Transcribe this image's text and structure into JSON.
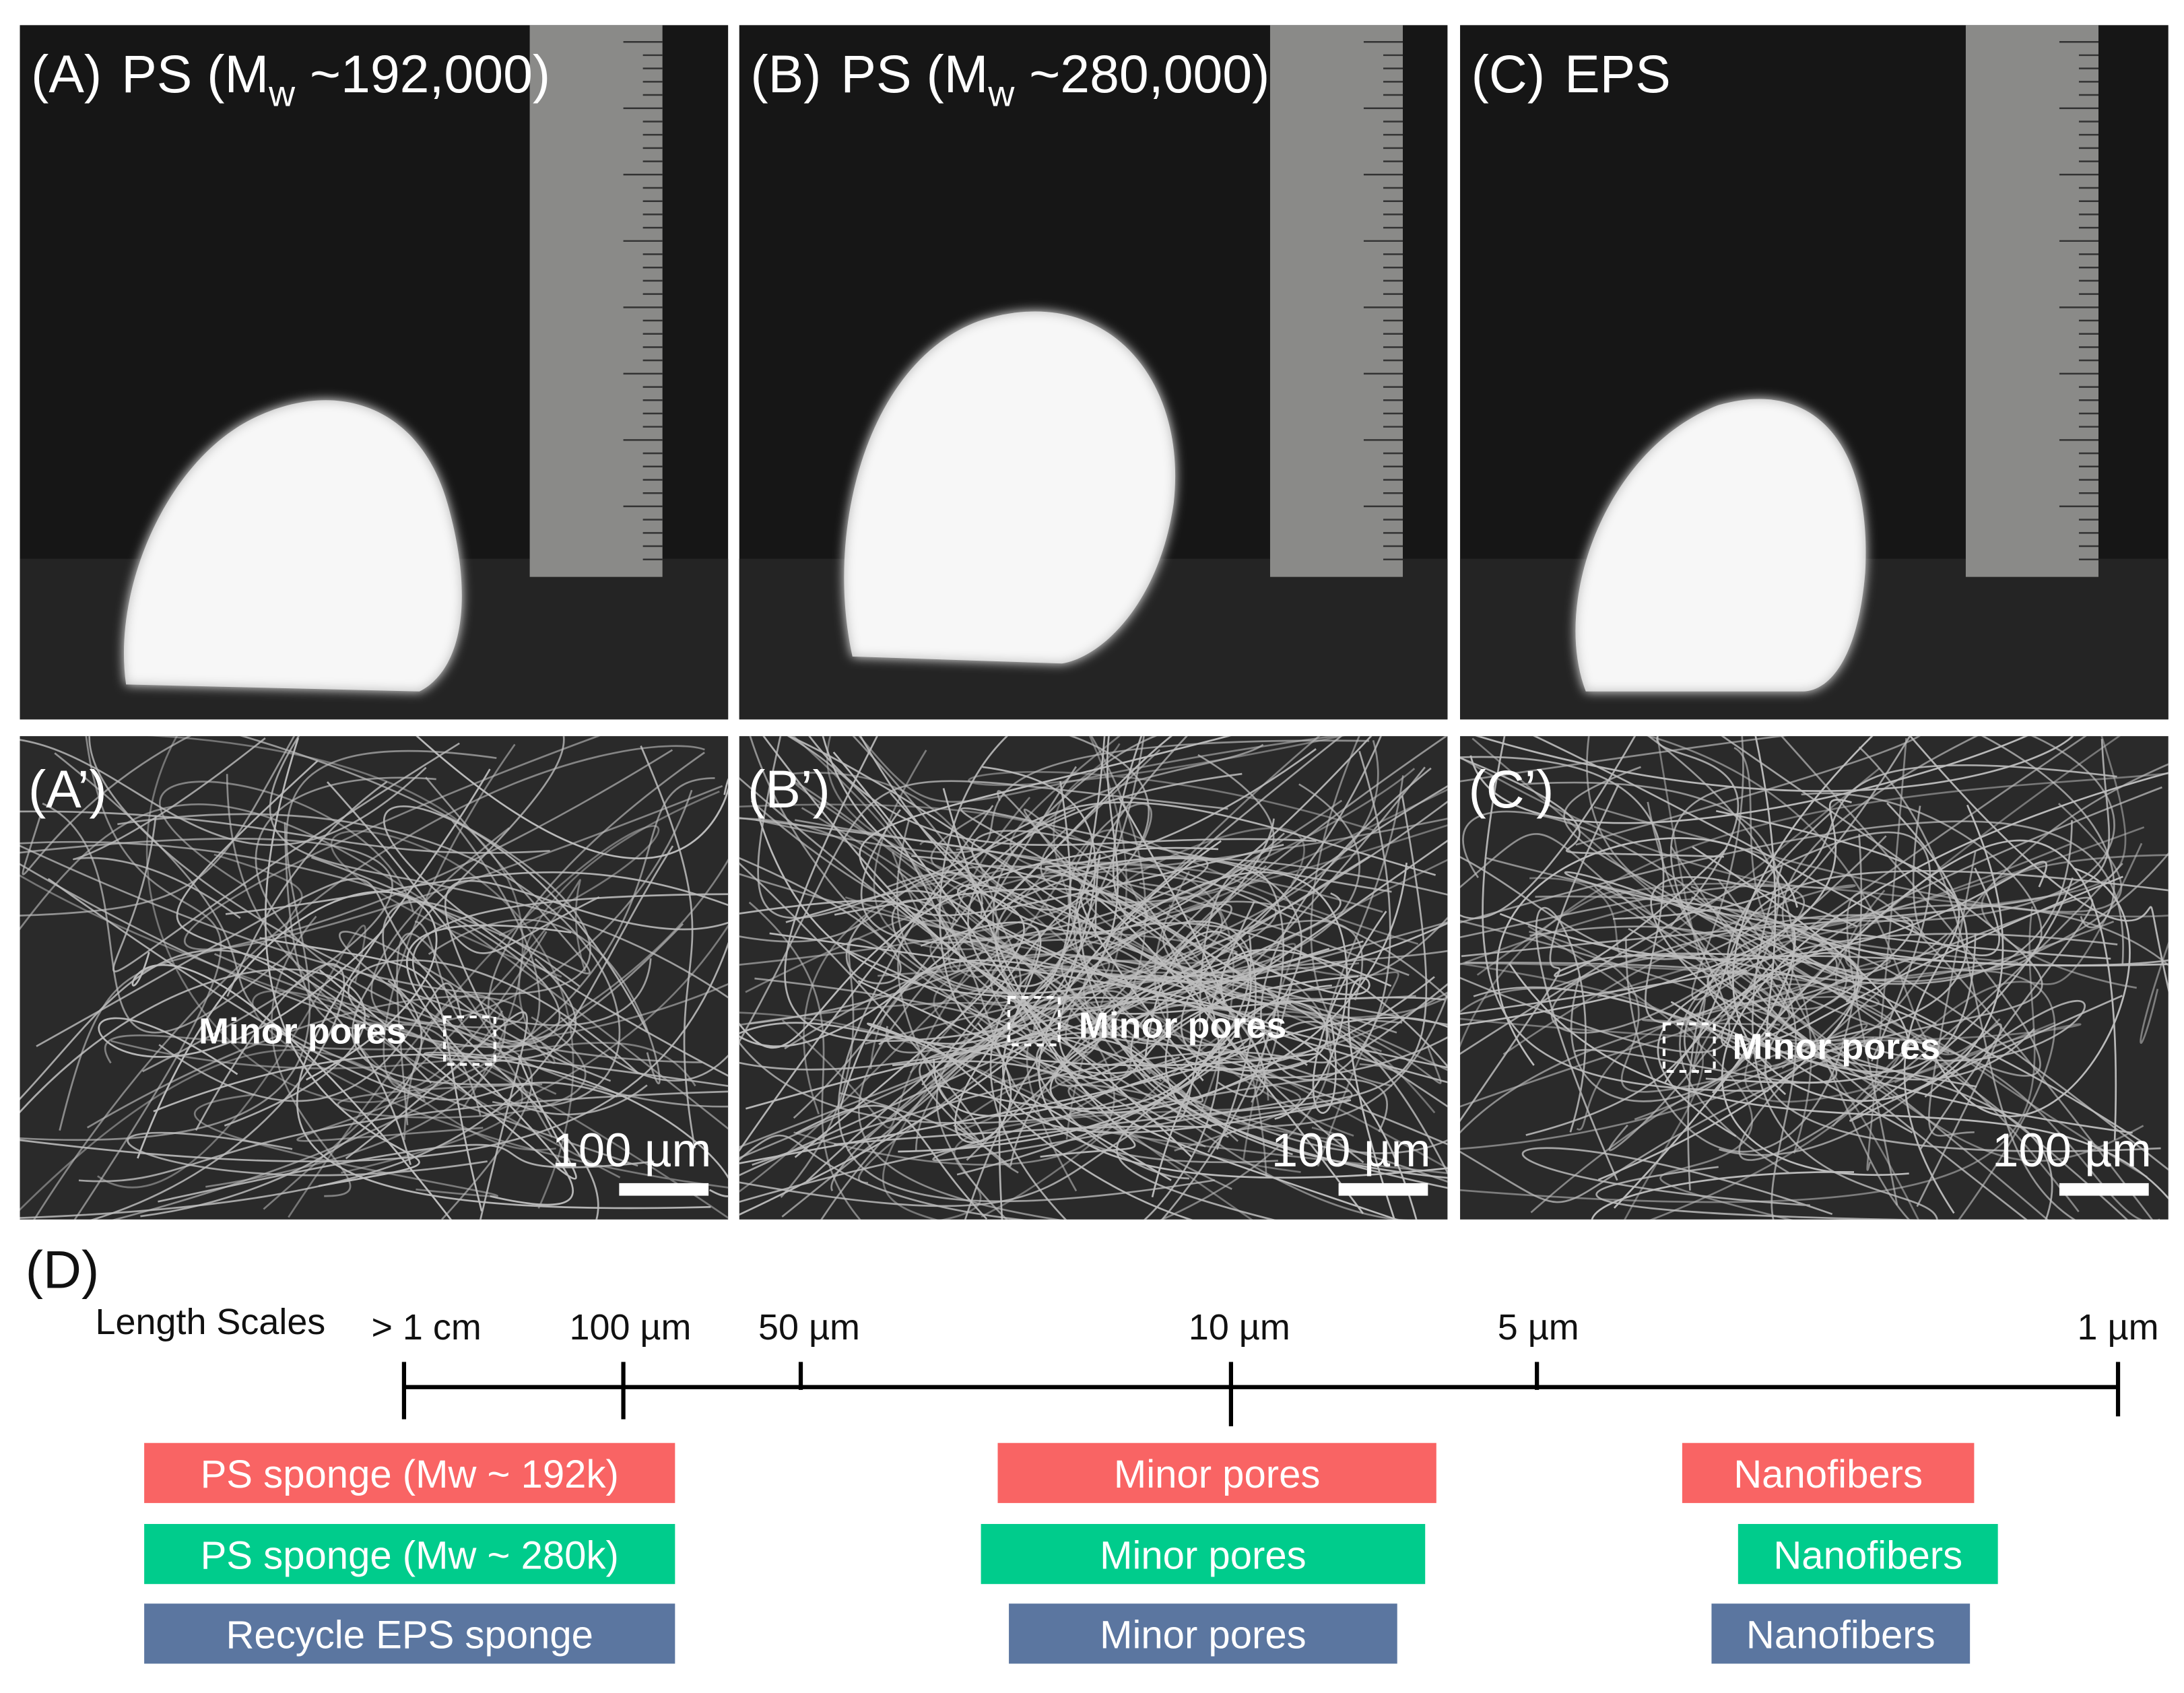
{
  "photo_panels": [
    {
      "label": "(A)",
      "text": "PS (M",
      "sub": "w",
      "tail": " ~192,000)"
    },
    {
      "label": "(B)",
      "text": "PS (M",
      "sub": "w",
      "tail": " ~280,000)"
    },
    {
      "label": "(C)",
      "text": "EPS",
      "sub": "",
      "tail": ""
    }
  ],
  "sem_panels": [
    {
      "label": "(A’)",
      "annotation": "Minor pores",
      "scale_bar": "100 µm"
    },
    {
      "label": "(B’)",
      "annotation": "Minor pores",
      "scale_bar": "100 µm"
    },
    {
      "label": "(C’)",
      "annotation": "Minor pores",
      "scale_bar": "100 µm"
    }
  ],
  "scale_diagram": {
    "label": "(D)",
    "axis_title": "Length Scales",
    "ticks": [
      "> 1 cm",
      "100 µm",
      "50 µm",
      "10 µm",
      "5 µm",
      "1 µm"
    ],
    "rows": [
      [
        "PS sponge (Mw  ~ 192k)",
        "Minor pores",
        "Nanofibers"
      ],
      [
        "PS sponge (Mw  ~ 280k)",
        "Minor pores",
        "Nanofibers"
      ],
      [
        "Recycle EPS sponge",
        "Minor pores",
        "Nanofibers"
      ]
    ]
  }
}
